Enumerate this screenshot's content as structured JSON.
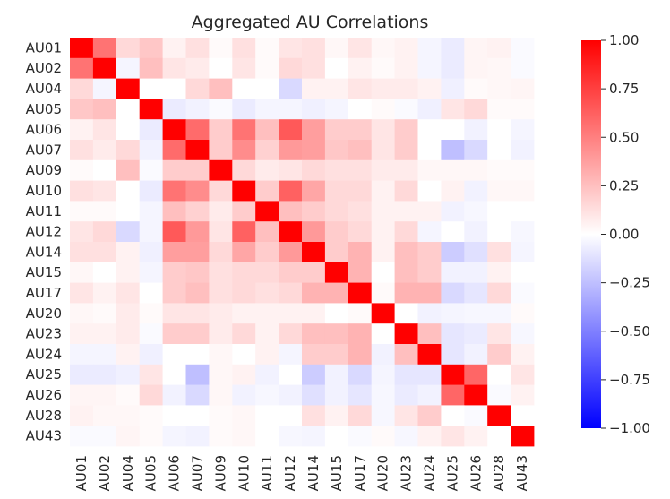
{
  "chart_data": {
    "type": "heatmap",
    "title": "Aggregated AU Correlations",
    "labels": [
      "AU01",
      "AU02",
      "AU04",
      "AU05",
      "AU06",
      "AU07",
      "AU09",
      "AU10",
      "AU11",
      "AU12",
      "AU14",
      "AU15",
      "AU17",
      "AU20",
      "AU23",
      "AU24",
      "AU25",
      "AU26",
      "AU28",
      "AU43"
    ],
    "vmin": -1.0,
    "vmax": 1.0,
    "colormap": "bwr",
    "colorbar_ticks": [
      "1.00",
      "0.75",
      "0.50",
      "0.25",
      "0.00",
      "−0.25",
      "−0.50",
      "−0.75",
      "−1.00"
    ],
    "colorbar_tick_values": [
      1.0,
      0.75,
      0.5,
      0.25,
      0.0,
      -0.25,
      -0.5,
      -0.75,
      -1.0
    ],
    "matrix": [
      [
        1.0,
        0.55,
        0.15,
        0.22,
        0.05,
        0.12,
        0.02,
        0.12,
        0.02,
        0.1,
        0.12,
        0.03,
        0.1,
        0.03,
        0.05,
        -0.04,
        -0.08,
        0.04,
        0.05,
        -0.02
      ],
      [
        0.55,
        1.0,
        -0.04,
        0.25,
        0.1,
        0.08,
        0.0,
        0.1,
        0.02,
        0.15,
        0.12,
        0.0,
        0.05,
        0.02,
        0.05,
        -0.04,
        -0.08,
        0.04,
        0.03,
        -0.02
      ],
      [
        0.15,
        -0.04,
        1.0,
        0.0,
        0.0,
        0.15,
        0.25,
        0.0,
        0.0,
        -0.15,
        0.05,
        0.05,
        0.1,
        0.08,
        0.08,
        0.05,
        -0.06,
        0.02,
        0.03,
        0.04
      ],
      [
        0.22,
        0.25,
        0.0,
        1.0,
        -0.08,
        -0.05,
        -0.02,
        -0.08,
        -0.04,
        -0.04,
        -0.06,
        -0.04,
        0.0,
        0.02,
        -0.02,
        -0.06,
        0.1,
        0.15,
        0.02,
        0.02
      ],
      [
        0.05,
        0.1,
        0.0,
        -0.08,
        1.0,
        0.58,
        0.2,
        0.55,
        0.25,
        0.65,
        0.38,
        0.2,
        0.2,
        0.1,
        0.2,
        0.0,
        0.0,
        -0.05,
        0.0,
        -0.04
      ],
      [
        0.12,
        0.08,
        0.15,
        -0.05,
        0.58,
        1.0,
        0.2,
        0.45,
        0.18,
        0.4,
        0.38,
        0.22,
        0.25,
        0.1,
        0.2,
        0.0,
        -0.25,
        -0.15,
        0.0,
        -0.05
      ],
      [
        0.02,
        0.0,
        0.25,
        -0.02,
        0.2,
        0.2,
        1.0,
        0.15,
        0.08,
        0.1,
        0.15,
        0.12,
        0.12,
        0.08,
        0.08,
        0.03,
        0.03,
        0.03,
        0.02,
        0.02
      ],
      [
        0.12,
        0.1,
        0.0,
        -0.08,
        0.55,
        0.45,
        0.15,
        1.0,
        0.2,
        0.62,
        0.35,
        0.15,
        0.15,
        0.05,
        0.15,
        0.0,
        0.05,
        -0.05,
        0.03,
        0.03
      ],
      [
        0.02,
        0.02,
        0.0,
        -0.04,
        0.25,
        0.18,
        0.08,
        0.2,
        1.0,
        0.25,
        0.2,
        0.15,
        0.12,
        0.05,
        0.05,
        0.05,
        -0.05,
        -0.03,
        0.0,
        0.0
      ],
      [
        0.1,
        0.15,
        -0.15,
        -0.04,
        0.65,
        0.4,
        0.1,
        0.62,
        0.25,
        1.0,
        0.4,
        0.2,
        0.15,
        0.05,
        0.15,
        -0.04,
        0.0,
        -0.05,
        0.0,
        -0.03
      ],
      [
        0.12,
        0.12,
        0.05,
        -0.06,
        0.38,
        0.38,
        0.15,
        0.35,
        0.2,
        0.4,
        1.0,
        0.2,
        0.3,
        0.05,
        0.25,
        0.2,
        -0.2,
        -0.12,
        0.12,
        -0.04
      ],
      [
        0.03,
        0.0,
        0.05,
        -0.04,
        0.2,
        0.22,
        0.12,
        0.15,
        0.15,
        0.2,
        0.2,
        1.0,
        0.3,
        0.0,
        0.25,
        0.2,
        -0.05,
        -0.05,
        0.05,
        0.0
      ],
      [
        0.1,
        0.05,
        0.1,
        0.0,
        0.2,
        0.25,
        0.12,
        0.15,
        0.12,
        0.15,
        0.3,
        0.3,
        1.0,
        0.02,
        0.3,
        0.3,
        -0.15,
        -0.1,
        0.15,
        -0.02
      ],
      [
        0.03,
        0.02,
        0.08,
        0.02,
        0.1,
        0.1,
        0.08,
        0.05,
        0.05,
        0.05,
        0.05,
        0.0,
        0.02,
        1.0,
        0.0,
        -0.05,
        -0.04,
        -0.03,
        -0.03,
        0.02
      ],
      [
        0.05,
        0.05,
        0.08,
        -0.02,
        0.2,
        0.2,
        0.08,
        0.15,
        0.05,
        0.15,
        0.25,
        0.25,
        0.3,
        0.0,
        1.0,
        0.25,
        -0.1,
        -0.08,
        0.1,
        -0.03
      ],
      [
        -0.04,
        -0.04,
        0.05,
        -0.06,
        0.0,
        0.0,
        0.03,
        0.0,
        0.05,
        -0.04,
        0.2,
        0.2,
        0.3,
        -0.05,
        0.25,
        1.0,
        -0.1,
        -0.05,
        0.2,
        0.05
      ],
      [
        -0.08,
        -0.08,
        -0.06,
        0.1,
        0.0,
        -0.25,
        0.03,
        0.05,
        -0.05,
        0.0,
        -0.2,
        -0.05,
        -0.15,
        -0.04,
        -0.1,
        -0.1,
        1.0,
        0.6,
        0.0,
        0.1
      ],
      [
        0.04,
        0.04,
        0.02,
        0.15,
        -0.05,
        -0.15,
        0.03,
        -0.05,
        -0.03,
        -0.05,
        -0.12,
        -0.05,
        -0.1,
        -0.03,
        -0.08,
        -0.05,
        0.6,
        1.0,
        -0.02,
        0.05
      ],
      [
        0.05,
        0.03,
        0.03,
        0.02,
        0.0,
        0.0,
        0.02,
        0.03,
        0.0,
        0.0,
        0.12,
        0.05,
        0.15,
        -0.03,
        0.1,
        0.2,
        0.0,
        -0.02,
        1.0,
        0.0
      ],
      [
        -0.02,
        -0.02,
        0.04,
        0.02,
        -0.04,
        -0.05,
        0.02,
        0.03,
        0.0,
        -0.03,
        -0.04,
        0.0,
        -0.02,
        0.02,
        -0.03,
        0.05,
        0.1,
        0.05,
        0.0,
        1.0
      ]
    ]
  }
}
